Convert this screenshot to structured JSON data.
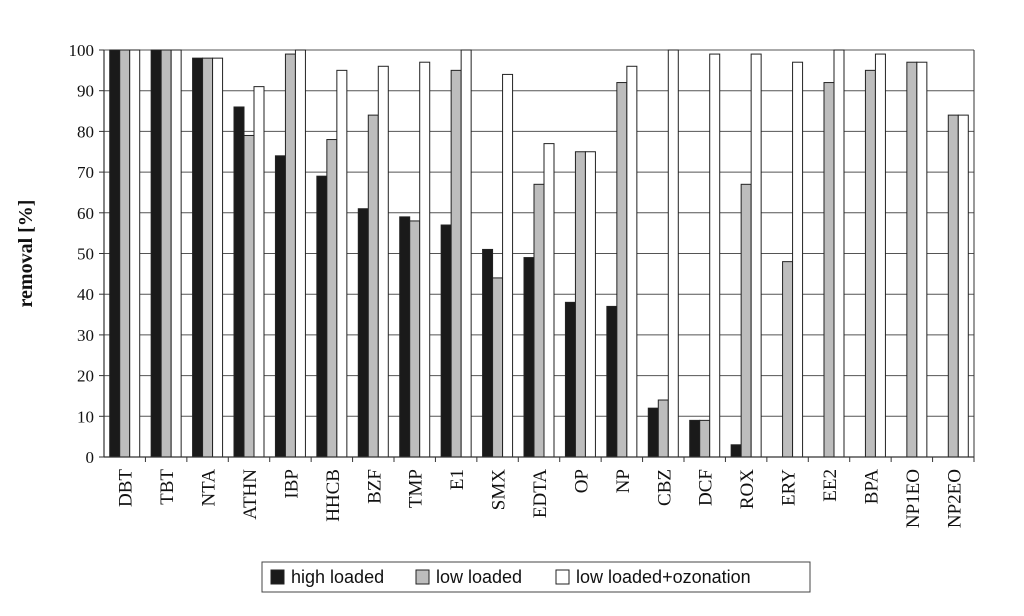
{
  "chart_data": {
    "type": "bar",
    "ylabel": "removal [%]",
    "ylim": [
      0,
      100
    ],
    "yticks": [
      0,
      10,
      20,
      30,
      40,
      50,
      60,
      70,
      80,
      90,
      100
    ],
    "grid": true,
    "legend_position": "bottom",
    "categories": [
      "DBT",
      "TBT",
      "NTA",
      "ATHN",
      "IBP",
      "HHCB",
      "BZF",
      "TMP",
      "E1",
      "SMX",
      "EDTA",
      "OP",
      "NP",
      "CBZ",
      "DCF",
      "ROX",
      "ERY",
      "EE2",
      "BPA",
      "NP1EO",
      "NP2EO"
    ],
    "series": [
      {
        "name": "high loaded",
        "color": "#1a1a1a",
        "values": [
          100,
          100,
          98,
          86,
          74,
          69,
          61,
          59,
          57,
          51,
          49,
          38,
          37,
          12,
          9,
          3,
          null,
          null,
          null,
          null,
          null
        ]
      },
      {
        "name": "low loaded",
        "color": "#bdbdbd",
        "values": [
          100,
          100,
          98,
          79,
          99,
          78,
          84,
          58,
          95,
          44,
          67,
          75,
          92,
          14,
          9,
          67,
          48,
          92,
          95,
          97,
          84
        ]
      },
      {
        "name": "low loaded+ozonation",
        "color": "#ffffff",
        "values": [
          100,
          100,
          98,
          91,
          100,
          95,
          96,
          97,
          100,
          94,
          77,
          75,
          96,
          100,
          99,
          99,
          97,
          100,
          99,
          97,
          84
        ]
      }
    ]
  }
}
